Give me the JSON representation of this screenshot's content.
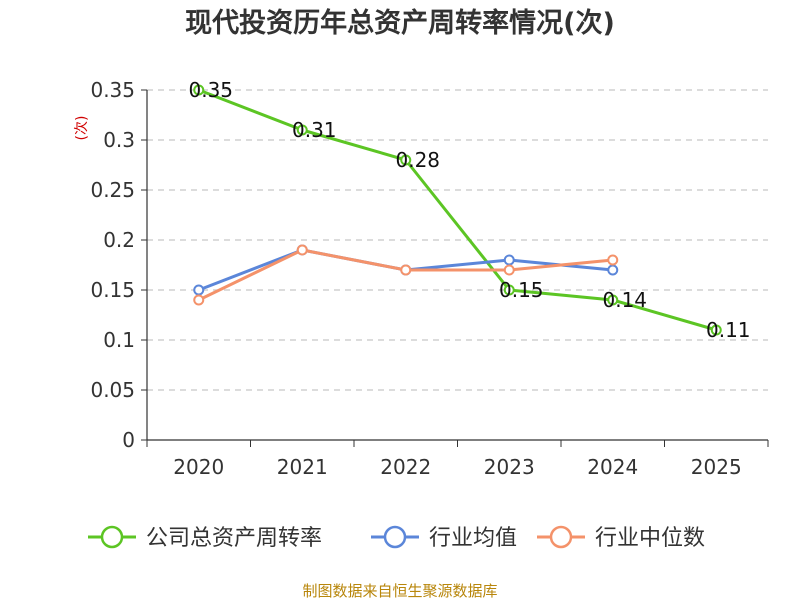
{
  "chart_data": {
    "type": "line",
    "title": "现代投资历年总资产周转率情况(次)",
    "ylabel": "(次)",
    "xlabel": "",
    "categories": [
      "2020",
      "2021",
      "2022",
      "2023",
      "2024",
      "2025"
    ],
    "ylim": [
      0,
      0.35
    ],
    "yticks": [
      "0",
      "0.05",
      "0.1",
      "0.15",
      "0.2",
      "0.25",
      "0.3",
      "0.35"
    ],
    "grid": true,
    "legend_position": "bottom",
    "series": [
      {
        "name": "公司总资产周转率",
        "color": "#5cc524",
        "values": [
          0.35,
          0.31,
          0.28,
          0.15,
          0.14,
          0.11
        ],
        "labels": [
          "0.35",
          "0.31",
          "0.28",
          "0.15",
          "0.14",
          "0.11"
        ]
      },
      {
        "name": "行业均值",
        "color": "#5b86d9",
        "values": [
          0.15,
          0.19,
          0.17,
          0.18,
          0.17,
          null
        ]
      },
      {
        "name": "行业中位数",
        "color": "#f4926a",
        "values": [
          0.14,
          0.19,
          0.17,
          0.17,
          0.18,
          null
        ]
      }
    ],
    "source": "制图数据来自恒生聚源数据库"
  }
}
